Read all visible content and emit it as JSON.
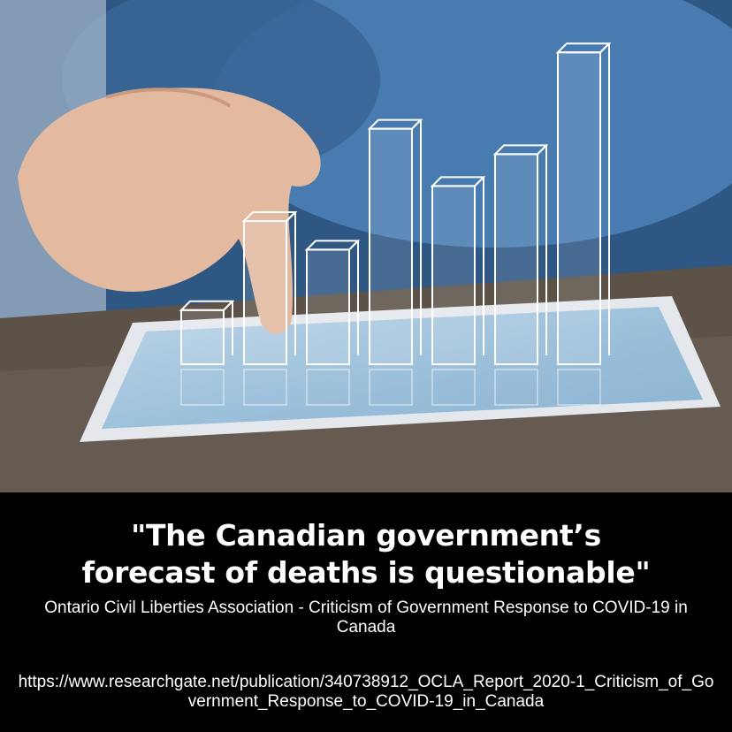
{
  "image": {
    "description_icon": "hand-tablet-bar-chart-photo"
  },
  "bars": {
    "values": [
      0.17,
      0.45,
      0.36,
      0.74,
      0.56,
      0.66,
      0.98
    ],
    "color": "#ffffff"
  },
  "caption": {
    "quote_line1": "\"The Canadian government’s",
    "quote_line2": "forecast of deaths is questionable\"",
    "source": "Ontario Civil Liberties Association - Criticism of Government Response to COVID-19 in Canada",
    "url": "https://www.researchgate.net/publication/340738912_OCLA_Report_2020-1_Criticism_of_Government_Response_to_COVID-19_in_Canada"
  }
}
